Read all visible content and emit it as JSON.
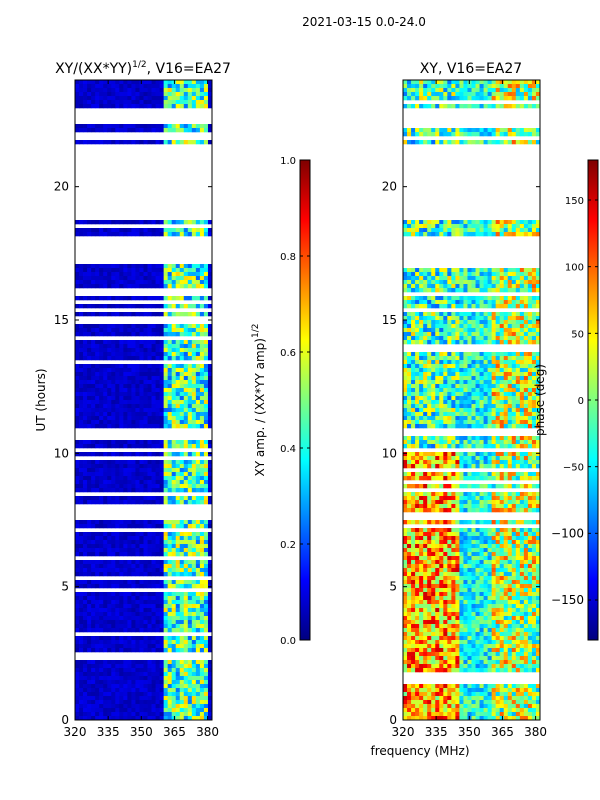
{
  "suptitle": "2021-03-15 0.0-24.0",
  "common_xlabel": "frequency (MHz)",
  "colors": {
    "jet": [
      "#00007f",
      "#0000ff",
      "#007fff",
      "#00ffff",
      "#7fff7f",
      "#ffff00",
      "#ff7f00",
      "#ff0000",
      "#7f0000"
    ],
    "frame": "#000000",
    "gap": "#ffffff"
  },
  "chart_data": [
    {
      "type": "heatmap",
      "title": "XY/(XX*YY)^{1/2}, V16=EA27",
      "title_main": "XY/(XX*YY)",
      "title_sup": "1/2",
      "title_tail": ", V16=EA27",
      "xlabel": "",
      "ylabel": "UT (hours)",
      "xlim": [
        320,
        382
      ],
      "ylim": [
        0,
        24
      ],
      "xticks": [
        320,
        335,
        350,
        365,
        380
      ],
      "yticks": [
        0,
        5,
        10,
        15,
        20
      ],
      "colorbar": {
        "label": "XY amp. / (XX*YY amp)^{1/2}",
        "label_main": "XY amp. / (XX*YY amp)",
        "label_sup": "1/2",
        "range": [
          0.0,
          1.0
        ],
        "ticks": [
          "0.0",
          "0.2",
          "0.4",
          "0.6",
          "0.8",
          "1.0"
        ],
        "tick_values": [
          0.0,
          0.2,
          0.4,
          0.6,
          0.8,
          1.0
        ]
      },
      "data_gaps_hours": [
        [
          18.7,
          21.4
        ],
        [
          17.1,
          18.2
        ],
        [
          22.4,
          22.9
        ],
        [
          10.6,
          11.0
        ],
        [
          7.5,
          7.8
        ]
      ],
      "description": "low amplitude (~0.05) below 360 MHz, elevated (~0.3-0.6) in 360-380 MHz band"
    },
    {
      "type": "heatmap",
      "title": "XY, V16=EA27",
      "xlabel": "frequency (MHz)",
      "ylabel": "",
      "xlim": [
        320,
        382
      ],
      "ylim": [
        0,
        24
      ],
      "xticks": [
        320,
        335,
        350,
        365,
        380
      ],
      "yticks": [
        0,
        5,
        10,
        15,
        20
      ],
      "colorbar": {
        "label": "phase (deg)",
        "range": [
          -180,
          180
        ],
        "ticks": [
          "-150",
          "-100",
          "-50",
          "0",
          "50",
          "100",
          "150"
        ],
        "tick_values": [
          -150,
          -100,
          -50,
          0,
          50,
          100,
          150
        ]
      },
      "data_gaps_hours": [
        [
          18.7,
          21.4
        ],
        [
          17.1,
          18.2
        ],
        [
          22.4,
          22.9
        ],
        [
          10.6,
          11.0
        ],
        [
          7.5,
          7.8
        ]
      ],
      "description": "mixed phases; warm (positive) near 330-345 MHz, cool/cyan elsewhere"
    }
  ]
}
